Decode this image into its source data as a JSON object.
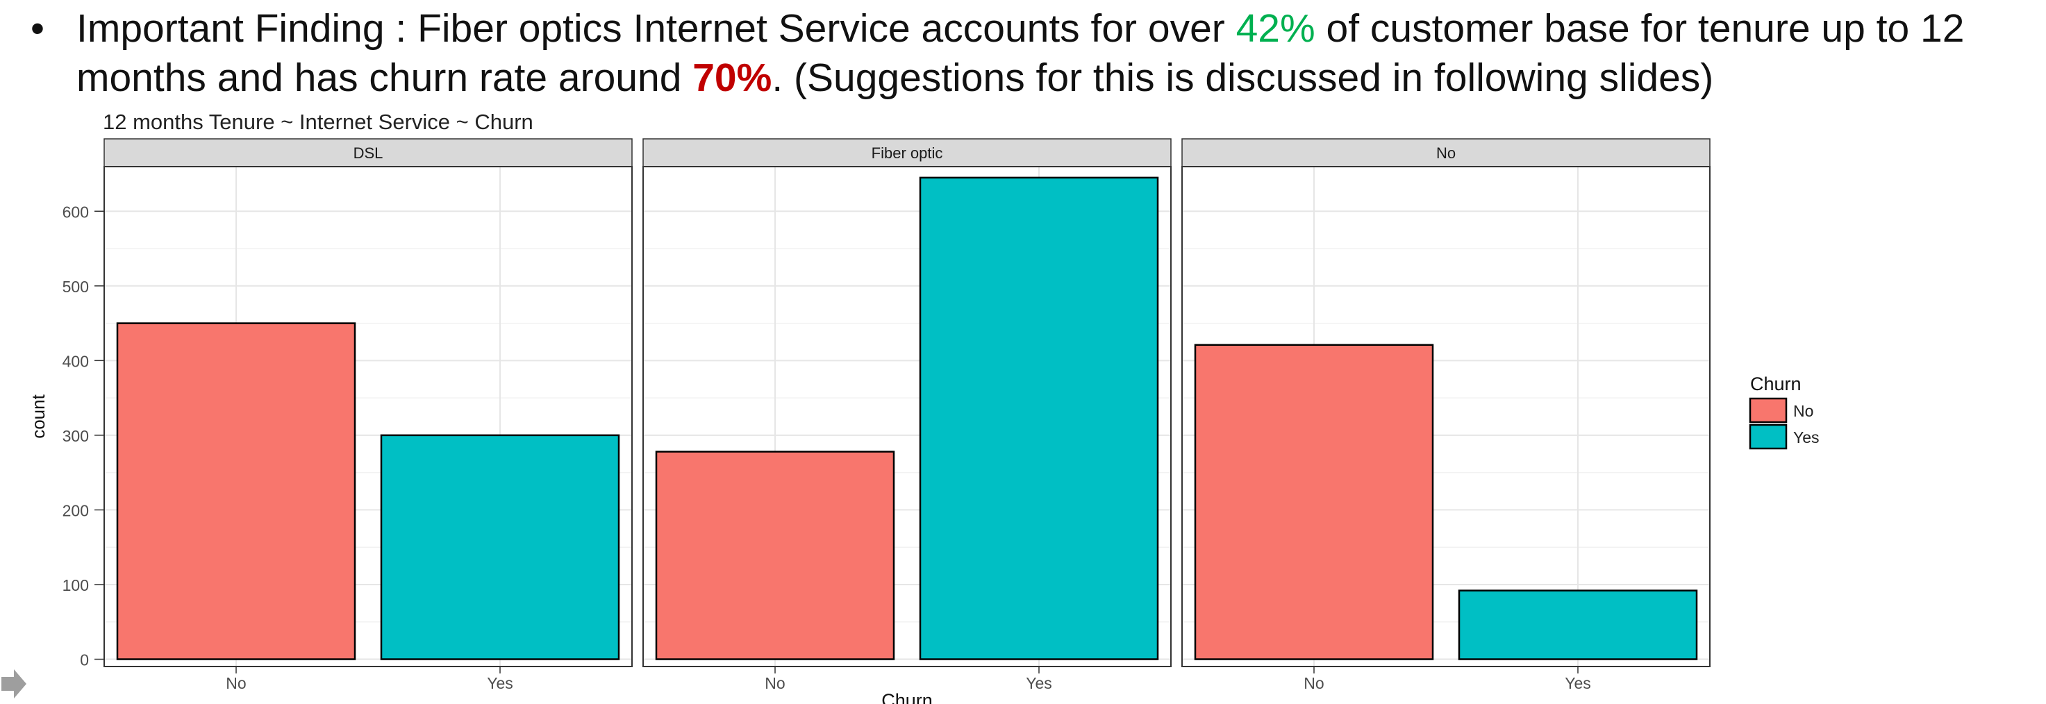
{
  "finding": {
    "bullet": "•",
    "prefix": "Important Finding : Fiber optics Internet Service accounts for over ",
    "highlight_share": "42%",
    "middle": " of customer base for tenure up to 12 months and has churn rate around ",
    "highlight_churn": "70%",
    "suffix": ". (Suggestions for this is discussed in following slides)",
    "colors": {
      "share": "#00B050",
      "churn": "#C00000"
    }
  },
  "chart_data": {
    "type": "bar",
    "title": "12 months Tenure ~ Internet Service ~ Churn",
    "xlabel": "Churn",
    "ylabel": "count",
    "ylim": [
      0,
      650
    ],
    "yticks": [
      0,
      100,
      200,
      300,
      400,
      500,
      600
    ],
    "categories": [
      "No",
      "Yes"
    ],
    "panels": [
      {
        "name": "DSL",
        "values": [
          450,
          300
        ]
      },
      {
        "name": "Fiber optic",
        "values": [
          278,
          645
        ]
      },
      {
        "name": "No",
        "values": [
          421,
          92
        ]
      }
    ],
    "legend": {
      "title": "Churn",
      "position": "right",
      "entries": [
        {
          "label": "No",
          "color": "#F8766D"
        },
        {
          "label": "Yes",
          "color": "#00BFC4"
        }
      ]
    },
    "grid": true
  }
}
